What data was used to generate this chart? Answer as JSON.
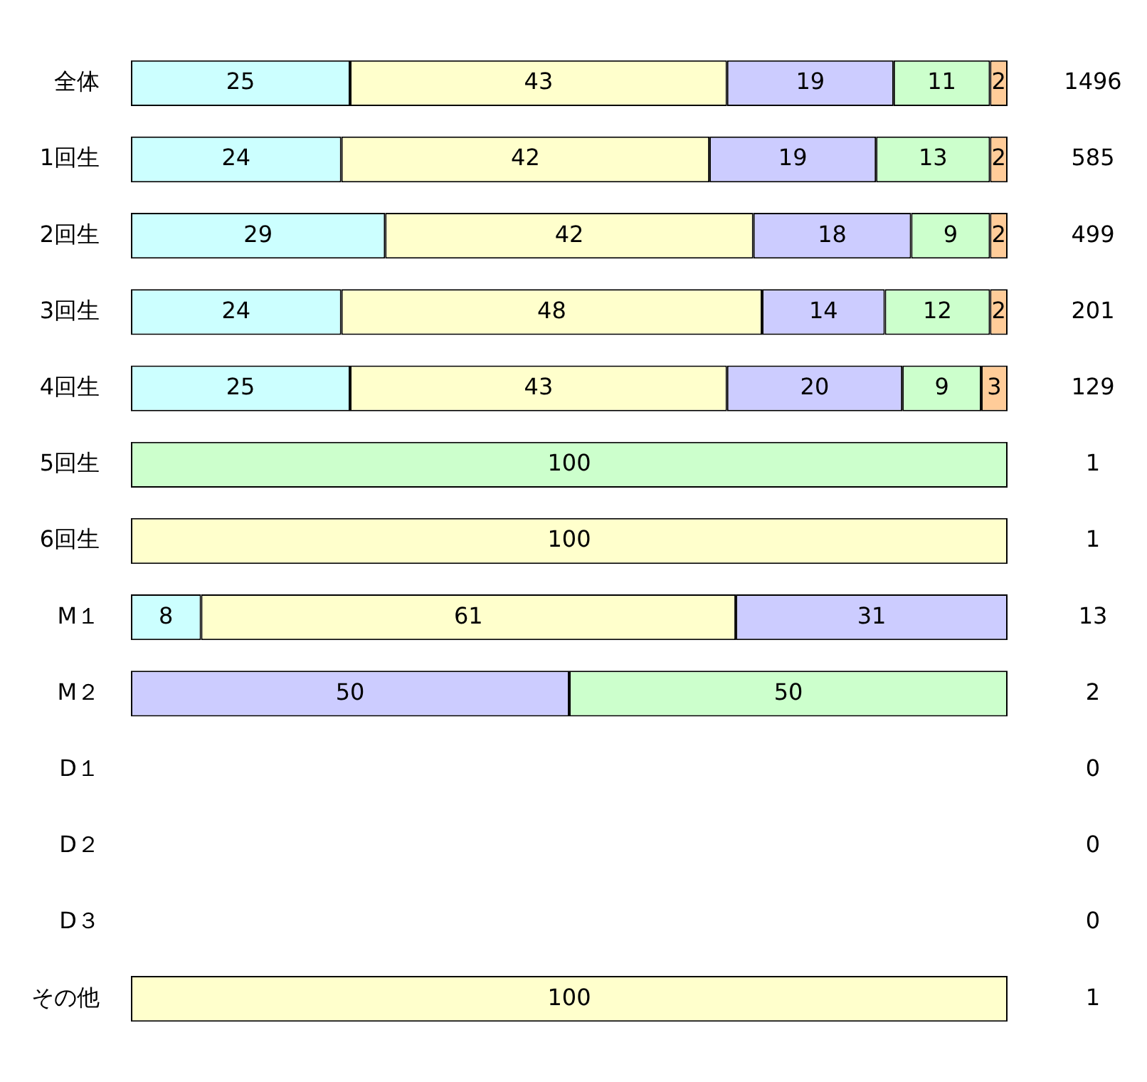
{
  "chart_data": {
    "type": "bar",
    "orientation": "horizontal",
    "stacked": true,
    "categories": [
      "全体",
      "1回生",
      "2回生",
      "3回生",
      "4回生",
      "5回生",
      "6回生",
      "M１",
      "M２",
      "D１",
      "D２",
      "D３",
      "その他"
    ],
    "xlim": [
      0,
      100
    ],
    "tick_labels": "y",
    "grid": false,
    "legend": false,
    "data_labels": true,
    "series": [
      {
        "color": "#ccffff",
        "values": [
          25,
          24,
          29,
          24,
          25,
          null,
          null,
          8,
          null,
          null,
          null,
          null,
          null
        ]
      },
      {
        "color": "#ffffcc",
        "values": [
          43,
          42,
          42,
          48,
          43,
          null,
          100,
          61,
          null,
          null,
          null,
          null,
          100
        ]
      },
      {
        "color": "#ccccff",
        "values": [
          19,
          19,
          18,
          14,
          20,
          null,
          null,
          31,
          50,
          null,
          null,
          null,
          null
        ]
      },
      {
        "color": "#ccffcc",
        "values": [
          11,
          13,
          9,
          12,
          9,
          100,
          null,
          null,
          50,
          null,
          null,
          null,
          null
        ]
      },
      {
        "color": "#ffcc99",
        "values": [
          2,
          2,
          2,
          2,
          3,
          null,
          null,
          null,
          null,
          null,
          null,
          null,
          null
        ]
      }
    ],
    "annotations": [
      "1496",
      "585",
      "499",
      "201",
      "129",
      "1",
      "1",
      "13",
      "2",
      "0",
      "0",
      "0",
      "1"
    ]
  }
}
